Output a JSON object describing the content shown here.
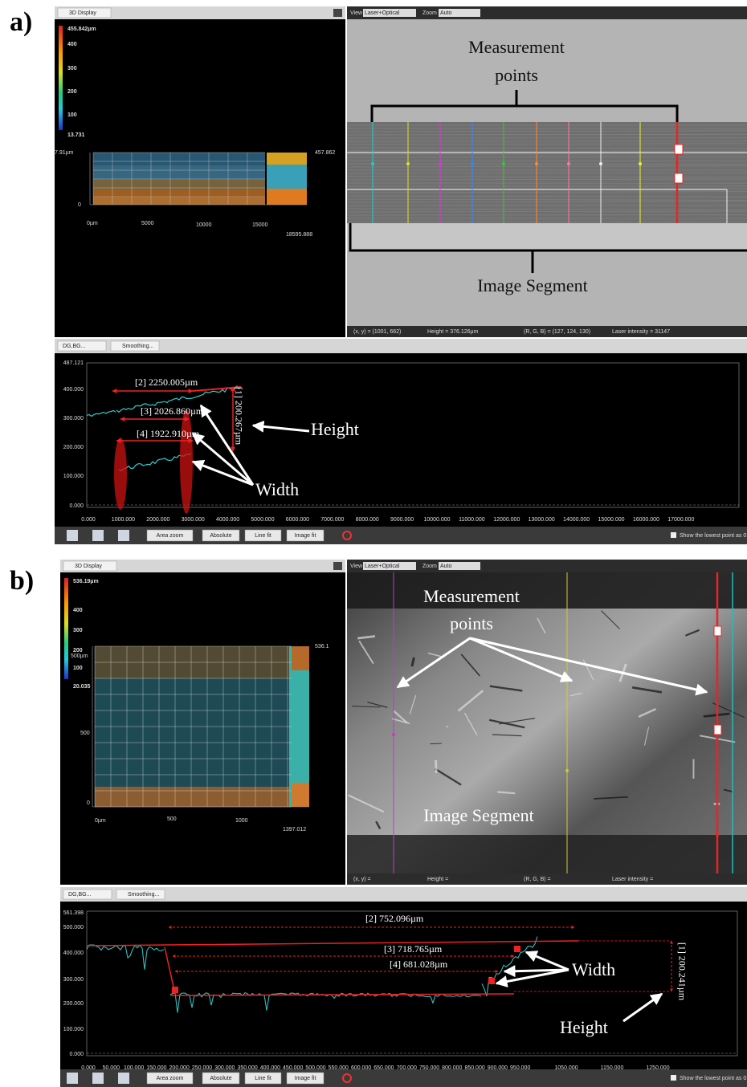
{
  "panels": [
    {
      "label": "a)",
      "display": {
        "tab": "3D Display",
        "scale": [
          "455.842µm",
          "400",
          "300",
          "200",
          "100",
          "13.731"
        ],
        "y_labels": [
          "7.91µm",
          "0"
        ],
        "right_label": "457.862",
        "x_labels": [
          "0µm",
          "5000",
          "10000",
          "15000",
          "18595.888"
        ]
      },
      "viewer": {
        "view": "View",
        "view_value": "Laser+Optical",
        "zoom": "Zoom",
        "zoom_value": "Auto",
        "annotations": [
          "Measurement",
          "points",
          "Image Segment"
        ],
        "status": [
          "(x, y) = (1001, 662)",
          "Height = 376.126µm",
          "(R, G, B) = (127, 124, 130)",
          "Laser intensity = 31147"
        ]
      },
      "profile": {
        "tabs": [
          "DG,BG...",
          "Smoothing..."
        ],
        "yticks": [
          "487.121",
          "400.000",
          "300.000",
          "200.000",
          "100.000",
          "0.000"
        ],
        "xticks": [
          "0.000",
          "1000.000",
          "2000.000",
          "3000.000",
          "4000.000",
          "5000.000",
          "6000.000",
          "7000.000",
          "8000.000",
          "9000.000",
          "10000.000",
          "11000.000",
          "12000.000",
          "13000.000",
          "14000.000",
          "15000.000",
          "16000.000",
          "17000.000"
        ],
        "measurements": [
          "[2] 2250.005µm",
          "[3] 2026.860µm",
          "[4] 1922.910µm",
          "[1] 200.267µm"
        ],
        "annotations": [
          "Height",
          "Width"
        ],
        "buttons": [
          "Area zoom",
          "Absolute",
          "Line fit",
          "Image fit"
        ],
        "checkbox": "Show the lowest point as 0"
      }
    },
    {
      "label": "b)",
      "display": {
        "tab": "3D Display",
        "scale": [
          "536.19µm",
          "400",
          "300",
          "200",
          "100",
          "20.035"
        ],
        "y_labels": [
          "500µm",
          "500",
          "0"
        ],
        "right_label": "536.1",
        "x_labels": [
          "0µm",
          "500",
          "1000",
          "1397.012"
        ]
      },
      "viewer": {
        "view": "View",
        "view_value": "Laser+Optical",
        "zoom": "Zoom",
        "zoom_value": "Auto",
        "annotations": [
          "Measurement",
          "points",
          "Image Segment"
        ],
        "status": [
          "(x, y) =",
          "Height =",
          "(R, G, B) =",
          "Laser intensity ="
        ]
      },
      "profile": {
        "tabs": [
          "DG,BG...",
          "Smoothing..."
        ],
        "yticks": [
          "561.398",
          "500.000",
          "400.000",
          "300.000",
          "200.000",
          "100.000",
          "0.000"
        ],
        "xticks": [
          "0.000",
          "50.000",
          "100.000",
          "150.000",
          "200.000",
          "250.000",
          "300.000",
          "350.000",
          "400.000",
          "450.000",
          "500.000",
          "550.000",
          "600.000",
          "650.000",
          "700.000",
          "750.000",
          "800.000",
          "850.000",
          "900.000",
          "950.000",
          "1050.000",
          "1150.000",
          "1250.000"
        ],
        "measurements": [
          "[2] 752.096µm",
          "[3] 718.765µm",
          "[4] 681.028µm",
          "[1] 200.241µm"
        ],
        "annotations": [
          "Height",
          "Width"
        ],
        "buttons": [
          "Area zoom",
          "Absolute",
          "Line fit",
          "Image fit"
        ],
        "checkbox": "Show the lowest point as 0"
      }
    }
  ]
}
